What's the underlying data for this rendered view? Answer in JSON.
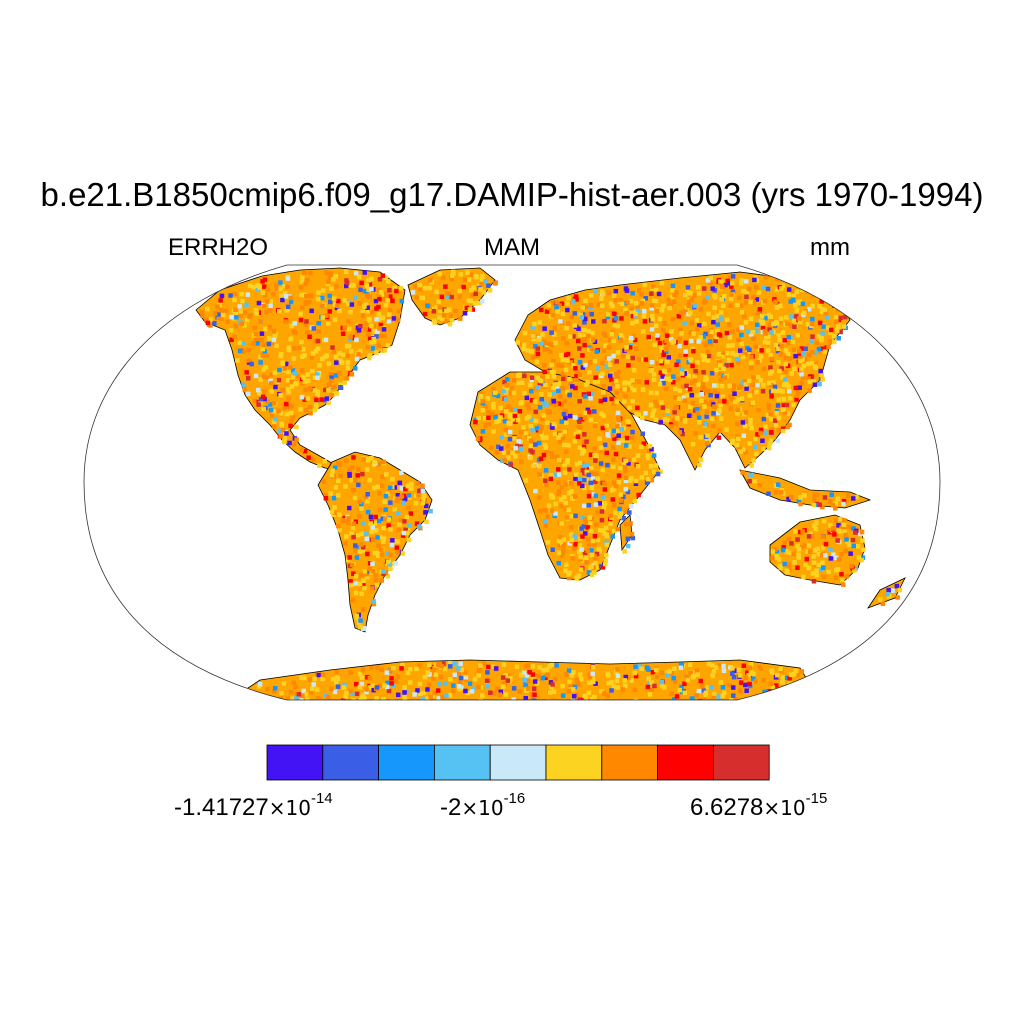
{
  "title": "b.e21.B1850cmip6.f09_g17.DAMIP-hist-aer.003 (yrs 1970-1994)",
  "left_subtitle": "ERRH2O",
  "center_subtitle": "MAM",
  "right_subtitle": "mm",
  "colorbar": {
    "colors": [
      "#4312F5",
      "#3A5FE6",
      "#1597FB",
      "#56C2F4",
      "#C9E8F8",
      "#FDD322",
      "#FF8800",
      "#FF0000",
      "#D62D2D"
    ],
    "labels": [
      {
        "mantissa": "-1.41727",
        "exponent": "-14"
      },
      {
        "mantissa": "-2",
        "exponent": "-16"
      },
      {
        "mantissa": "6.6278",
        "exponent": "-15"
      }
    ],
    "times_symbol": "×10"
  }
}
